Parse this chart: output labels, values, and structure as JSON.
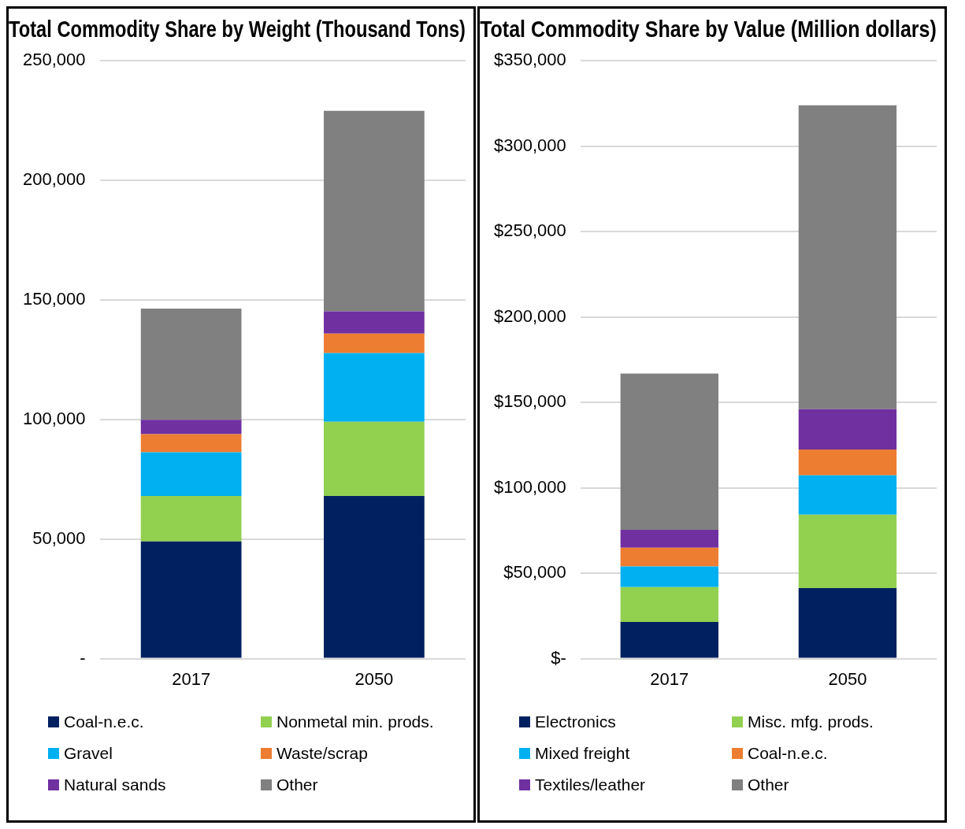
{
  "chart_data": [
    {
      "type": "bar",
      "title": "Total Commodity Share by Weight (Thousand Tons)",
      "categories": [
        "2017",
        "2050"
      ],
      "stacked": true,
      "ylim": [
        0,
        250000
      ],
      "yticks": [
        {
          "value": 0,
          "label": "-"
        },
        {
          "value": 50000,
          "label": "50,000"
        },
        {
          "value": 100000,
          "label": "100,000"
        },
        {
          "value": 150000,
          "label": "150,000"
        },
        {
          "value": 200000,
          "label": "200,000"
        },
        {
          "value": 250000,
          "label": "250,000"
        }
      ],
      "grid": "y",
      "legend": "bottom",
      "series": [
        {
          "name": "Coal-n.e.c.",
          "color": "#002060",
          "values": [
            49000,
            68000
          ]
        },
        {
          "name": "Nonmetal min. prods.",
          "color": "#92d050",
          "values": [
            19000,
            31000
          ]
        },
        {
          "name": "Gravel",
          "color": "#00b0f0",
          "values": [
            18300,
            28700
          ]
        },
        {
          "name": "Waste/scrap",
          "color": "#ed7d31",
          "values": [
            7500,
            8200
          ]
        },
        {
          "name": "Natural sands",
          "color": "#7030a0",
          "values": [
            6000,
            9300
          ]
        },
        {
          "name": "Other",
          "color": "#808080",
          "values": [
            46500,
            83800
          ]
        }
      ]
    },
    {
      "type": "bar",
      "title": "Total Commodity Share by Value (Million dollars)",
      "categories": [
        "2017",
        "2050"
      ],
      "stacked": true,
      "ylim": [
        0,
        350000
      ],
      "yticks": [
        {
          "value": 0,
          "label": "$-"
        },
        {
          "value": 50000,
          "label": "$50,000"
        },
        {
          "value": 100000,
          "label": "$100,000"
        },
        {
          "value": 150000,
          "label": "$150,000"
        },
        {
          "value": 200000,
          "label": "$200,000"
        },
        {
          "value": 250000,
          "label": "$250,000"
        },
        {
          "value": 300000,
          "label": "$300,000"
        },
        {
          "value": 350000,
          "label": "$350,000"
        }
      ],
      "grid": "y",
      "legend": "bottom",
      "series": [
        {
          "name": "Electronics",
          "color": "#002060",
          "values": [
            21500,
            41300
          ]
        },
        {
          "name": "Misc. mfg. prods.",
          "color": "#92d050",
          "values": [
            20400,
            42900
          ]
        },
        {
          "name": "Mixed freight",
          "color": "#00b0f0",
          "values": [
            12000,
            23100
          ]
        },
        {
          "name": "Coal-n.e.c.",
          "color": "#ed7d31",
          "values": [
            11000,
            15100
          ]
        },
        {
          "name": "Textiles/leather",
          "color": "#7030a0",
          "values": [
            10500,
            23600
          ]
        },
        {
          "name": "Other",
          "color": "#808080",
          "values": [
            91500,
            177900
          ]
        }
      ]
    }
  ]
}
